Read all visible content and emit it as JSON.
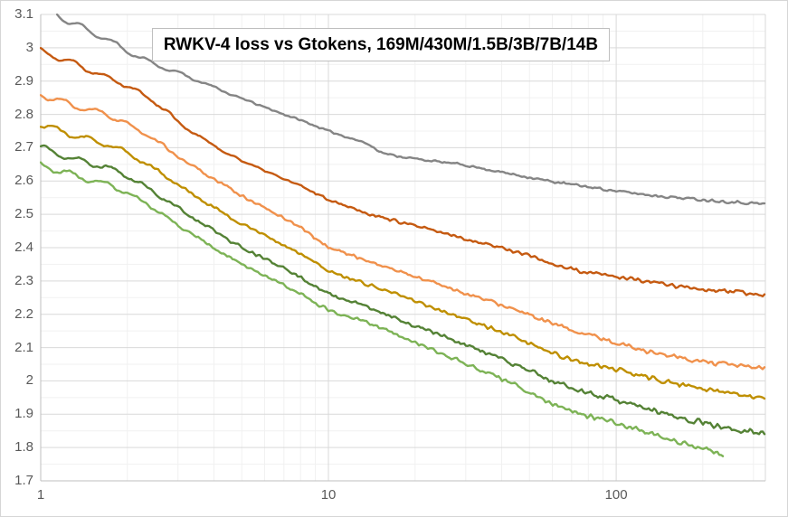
{
  "chart_data": {
    "type": "line",
    "title": "RWKV-4 loss vs Gtokens, 169M/430M/1.5B/3B/7B/14B",
    "xlabel": "",
    "ylabel": "",
    "legend": "none",
    "grid": true,
    "x_axis": {
      "scale": "log",
      "min": 1,
      "max": 330,
      "tick_labels": [
        "1",
        "10",
        "100"
      ]
    },
    "y_axis": {
      "min": 1.7,
      "max": 3.1,
      "major_step": 0.1,
      "minor_step": 0.05,
      "tick_labels": [
        "3.1",
        "3",
        "2.9",
        "2.8",
        "2.7",
        "2.6",
        "2.5",
        "2.4",
        "2.3",
        "2.2",
        "2.1",
        "2",
        "1.9",
        "1.8",
        "1.7"
      ]
    },
    "colors": {
      "background": "#FFFFFF",
      "grid_major": "#D9D9D9",
      "grid_minor": "#F1F1F1",
      "axis_line": "#BFBFBF",
      "tick_text": "#595959",
      "title_border": "#BFBFBF"
    },
    "series": [
      {
        "name": "169M",
        "color": "#858585",
        "noise": 0.0045,
        "wiggle": 0.012,
        "seed": 11,
        "points": [
          [
            1.14,
            3.1
          ],
          [
            1.3,
            3.073
          ],
          [
            1.45,
            3.052
          ],
          [
            1.6,
            3.038
          ],
          [
            1.8,
            3.012
          ],
          [
            2,
            2.99
          ],
          [
            2.4,
            2.956
          ],
          [
            3,
            2.925
          ],
          [
            3.5,
            2.902
          ],
          [
            4,
            2.882
          ],
          [
            5,
            2.847
          ],
          [
            6,
            2.822
          ],
          [
            7,
            2.8
          ],
          [
            8,
            2.783
          ],
          [
            10,
            2.75
          ],
          [
            12,
            2.728
          ],
          [
            13.5,
            2.714
          ],
          [
            14.7,
            2.695
          ],
          [
            15.5,
            2.684
          ],
          [
            17,
            2.676
          ],
          [
            20,
            2.667
          ],
          [
            24,
            2.658
          ],
          [
            29,
            2.65
          ],
          [
            35,
            2.636
          ],
          [
            42,
            2.623
          ],
          [
            50,
            2.611
          ],
          [
            60,
            2.598
          ],
          [
            75,
            2.586
          ],
          [
            100,
            2.57
          ],
          [
            130,
            2.558
          ],
          [
            170,
            2.549
          ],
          [
            220,
            2.541
          ],
          [
            280,
            2.535
          ],
          [
            330,
            2.531
          ]
        ]
      },
      {
        "name": "430M",
        "color": "#C55A11",
        "noise": 0.0065,
        "wiggle": 0.009,
        "seed": 22,
        "points": [
          [
            1,
            2.99
          ],
          [
            1.2,
            2.966
          ],
          [
            1.4,
            2.942
          ],
          [
            1.6,
            2.921
          ],
          [
            1.8,
            2.904
          ],
          [
            2,
            2.886
          ],
          [
            2.2,
            2.866
          ],
          [
            2.5,
            2.836
          ],
          [
            2.8,
            2.803
          ],
          [
            3,
            2.778
          ],
          [
            3.5,
            2.737
          ],
          [
            4,
            2.706
          ],
          [
            4.5,
            2.681
          ],
          [
            5,
            2.661
          ],
          [
            6,
            2.631
          ],
          [
            7,
            2.606
          ],
          [
            8,
            2.585
          ],
          [
            10,
            2.545
          ],
          [
            12,
            2.521
          ],
          [
            14,
            2.5
          ],
          [
            17,
            2.481
          ],
          [
            20,
            2.465
          ],
          [
            25,
            2.444
          ],
          [
            30,
            2.426
          ],
          [
            40,
            2.4
          ],
          [
            50,
            2.376
          ],
          [
            60,
            2.352
          ],
          [
            75,
            2.328
          ],
          [
            100,
            2.313
          ],
          [
            130,
            2.297
          ],
          [
            170,
            2.283
          ],
          [
            220,
            2.271
          ],
          [
            280,
            2.263
          ],
          [
            330,
            2.259
          ]
        ]
      },
      {
        "name": "1.5B",
        "color": "#F0914C",
        "noise": 0.0075,
        "wiggle": 0.009,
        "seed": 33,
        "points": [
          [
            1,
            2.86
          ],
          [
            1.3,
            2.826
          ],
          [
            1.7,
            2.799
          ],
          [
            2,
            2.771
          ],
          [
            2.3,
            2.742
          ],
          [
            2.6,
            2.712
          ],
          [
            3,
            2.673
          ],
          [
            3.5,
            2.636
          ],
          [
            4,
            2.606
          ],
          [
            4.5,
            2.579
          ],
          [
            5,
            2.556
          ],
          [
            6,
            2.519
          ],
          [
            7,
            2.489
          ],
          [
            8,
            2.462
          ],
          [
            9,
            2.428
          ],
          [
            10,
            2.401
          ],
          [
            12,
            2.378
          ],
          [
            14,
            2.357
          ],
          [
            17,
            2.333
          ],
          [
            20,
            2.313
          ],
          [
            25,
            2.287
          ],
          [
            30,
            2.262
          ],
          [
            40,
            2.228
          ],
          [
            50,
            2.197
          ],
          [
            60,
            2.171
          ],
          [
            75,
            2.145
          ],
          [
            100,
            2.115
          ],
          [
            130,
            2.088
          ],
          [
            170,
            2.068
          ],
          [
            220,
            2.052
          ],
          [
            280,
            2.043
          ],
          [
            330,
            2.039
          ]
        ]
      },
      {
        "name": "3B",
        "color": "#BF8F00",
        "noise": 0.0078,
        "wiggle": 0.009,
        "seed": 44,
        "points": [
          [
            1,
            2.77
          ],
          [
            1.3,
            2.737
          ],
          [
            1.7,
            2.711
          ],
          [
            2,
            2.684
          ],
          [
            2.3,
            2.655
          ],
          [
            2.6,
            2.625
          ],
          [
            3,
            2.589
          ],
          [
            3.5,
            2.551
          ],
          [
            4,
            2.521
          ],
          [
            4.5,
            2.494
          ],
          [
            5,
            2.471
          ],
          [
            6,
            2.437
          ],
          [
            7,
            2.407
          ],
          [
            8,
            2.381
          ],
          [
            9,
            2.354
          ],
          [
            10,
            2.33
          ],
          [
            12,
            2.307
          ],
          [
            14,
            2.287
          ],
          [
            17,
            2.262
          ],
          [
            20,
            2.24
          ],
          [
            25,
            2.21
          ],
          [
            30,
            2.185
          ],
          [
            40,
            2.146
          ],
          [
            50,
            2.112
          ],
          [
            60,
            2.083
          ],
          [
            75,
            2.056
          ],
          [
            100,
            2.034
          ],
          [
            130,
            2.009
          ],
          [
            170,
            1.988
          ],
          [
            220,
            1.97
          ],
          [
            280,
            1.956
          ],
          [
            330,
            1.946
          ]
        ]
      },
      {
        "name": "7B",
        "color": "#548235",
        "noise": 0.0085,
        "wiggle": 0.009,
        "seed": 55,
        "points": [
          [
            1,
            2.7
          ],
          [
            1.3,
            2.667
          ],
          [
            1.7,
            2.641
          ],
          [
            2,
            2.614
          ],
          [
            2.3,
            2.585
          ],
          [
            2.6,
            2.555
          ],
          [
            3,
            2.519
          ],
          [
            3.5,
            2.481
          ],
          [
            4,
            2.451
          ],
          [
            4.5,
            2.424
          ],
          [
            5,
            2.401
          ],
          [
            6,
            2.367
          ],
          [
            7,
            2.337
          ],
          [
            8,
            2.311
          ],
          [
            9,
            2.284
          ],
          [
            10,
            2.26
          ],
          [
            12,
            2.238
          ],
          [
            14,
            2.218
          ],
          [
            17,
            2.192
          ],
          [
            20,
            2.165
          ],
          [
            25,
            2.135
          ],
          [
            30,
            2.108
          ],
          [
            40,
            2.066
          ],
          [
            50,
            2.031
          ],
          [
            60,
            2.0
          ],
          [
            75,
            1.97
          ],
          [
            100,
            1.943
          ],
          [
            130,
            1.915
          ],
          [
            170,
            1.889
          ],
          [
            220,
            1.866
          ],
          [
            280,
            1.849
          ],
          [
            330,
            1.841
          ]
        ]
      },
      {
        "name": "14B",
        "color": "#7DB356",
        "noise": 0.0085,
        "wiggle": 0.009,
        "seed": 66,
        "points": [
          [
            1,
            2.65
          ],
          [
            1.3,
            2.617
          ],
          [
            1.7,
            2.591
          ],
          [
            2,
            2.564
          ],
          [
            2.3,
            2.535
          ],
          [
            2.6,
            2.505
          ],
          [
            3,
            2.469
          ],
          [
            3.5,
            2.431
          ],
          [
            4,
            2.401
          ],
          [
            4.5,
            2.374
          ],
          [
            5,
            2.351
          ],
          [
            6,
            2.317
          ],
          [
            7,
            2.287
          ],
          [
            8,
            2.261
          ],
          [
            9,
            2.234
          ],
          [
            10,
            2.212
          ],
          [
            12,
            2.191
          ],
          [
            14,
            2.172
          ],
          [
            17,
            2.144
          ],
          [
            20,
            2.116
          ],
          [
            25,
            2.081
          ],
          [
            30,
            2.051
          ],
          [
            40,
            2.006
          ],
          [
            50,
            1.966
          ],
          [
            60,
            1.933
          ],
          [
            75,
            1.9
          ],
          [
            100,
            1.874
          ],
          [
            130,
            1.846
          ],
          [
            160,
            1.82
          ],
          [
            200,
            1.797
          ],
          [
            235,
            1.776
          ]
        ]
      }
    ]
  }
}
